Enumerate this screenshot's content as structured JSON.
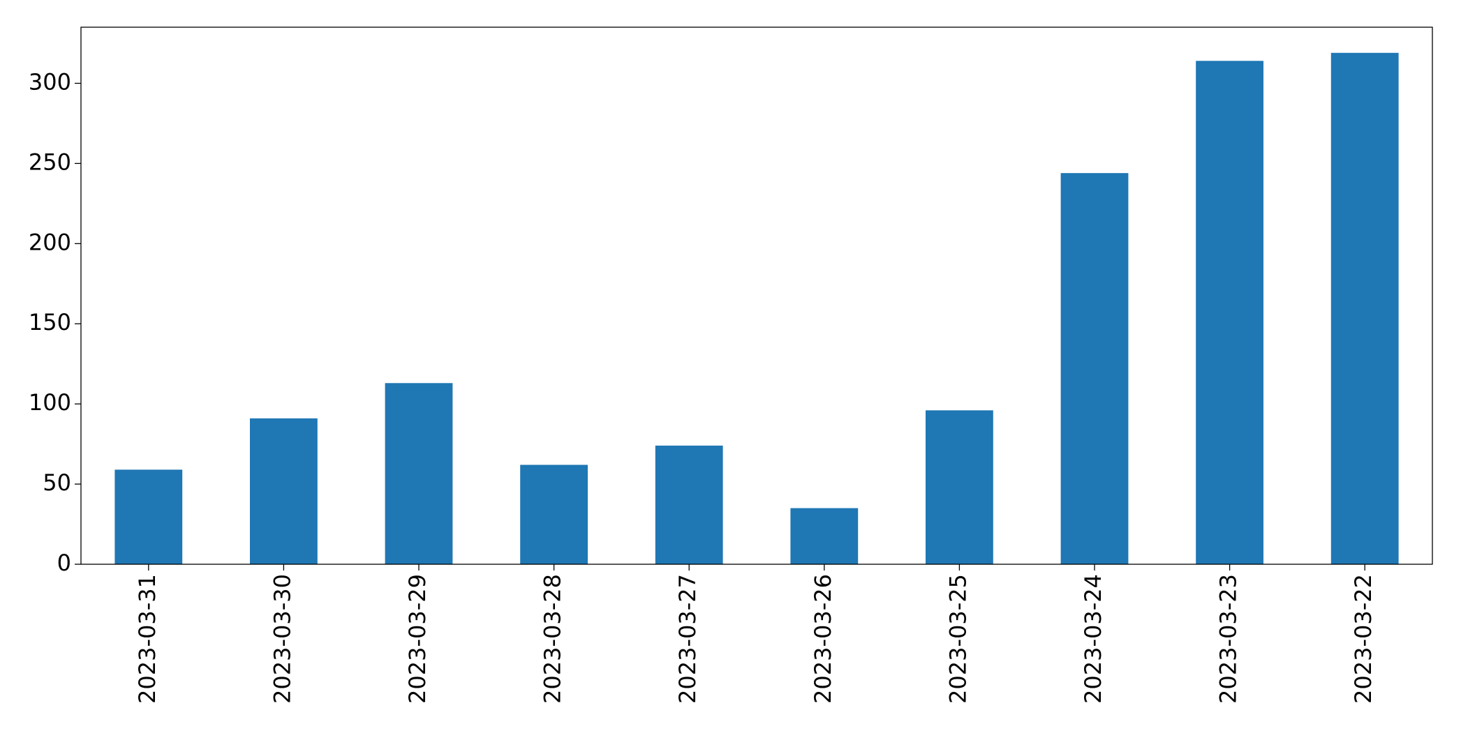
{
  "chart_data": {
    "type": "bar",
    "categories": [
      "2023-03-31",
      "2023-03-30",
      "2023-03-29",
      "2023-03-28",
      "2023-03-27",
      "2023-03-26",
      "2023-03-25",
      "2023-03-24",
      "2023-03-23",
      "2023-03-22"
    ],
    "values": [
      59,
      91,
      113,
      62,
      74,
      35,
      96,
      244,
      314,
      319
    ],
    "color": "#1f77b4",
    "ylim": [
      0,
      335
    ],
    "yticks": [
      0,
      50,
      100,
      150,
      200,
      250,
      300
    ],
    "grid": false
  }
}
